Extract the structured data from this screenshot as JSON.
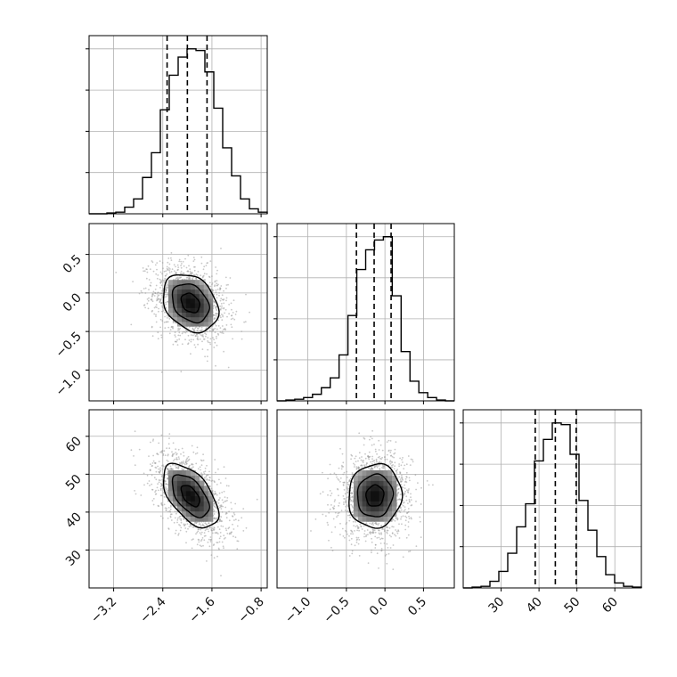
{
  "chart_data": {
    "type": "corner",
    "grid": true,
    "colors": {
      "line": "#000000",
      "grid": "#b0b0b0",
      "scatter": "#9a9a9a"
    },
    "parameters": [
      {
        "id": "p1",
        "range": [
          -3.6,
          -0.7
        ],
        "ticks": [
          -3.2,
          -2.4,
          -1.6,
          -0.8
        ],
        "tick_labels": [
          "−3.2",
          "−2.4",
          "−1.6",
          "−0.8"
        ],
        "quantiles": [
          -2.33,
          -2.0,
          -1.68
        ],
        "hist_ymax": 1.08,
        "hist": {
          "edges": [
            -3.6,
            -3.455,
            -3.31,
            -3.165,
            -3.02,
            -2.875,
            -2.73,
            -2.585,
            -2.44,
            -2.295,
            -2.15,
            -2.005,
            -1.86,
            -1.715,
            -1.57,
            -1.425,
            -1.28,
            -1.135,
            -0.99,
            -0.845,
            -0.7
          ],
          "counts": [
            0,
            0,
            0.005,
            0.01,
            0.04,
            0.09,
            0.22,
            0.37,
            0.63,
            0.84,
            0.95,
            1.0,
            0.99,
            0.86,
            0.64,
            0.4,
            0.23,
            0.09,
            0.03,
            0.01
          ]
        }
      },
      {
        "id": "p2",
        "range": [
          -1.4,
          0.9
        ],
        "ticks": [
          -1.0,
          -0.5,
          0.0,
          0.5
        ],
        "tick_labels": [
          "−1.0",
          "−0.5",
          "0.0",
          "0.5"
        ],
        "quantiles": [
          -0.37,
          -0.14,
          0.08
        ],
        "hist_ymax": 1.08,
        "hist": {
          "edges": [
            -1.4,
            -1.285,
            -1.17,
            -1.055,
            -0.94,
            -0.825,
            -0.71,
            -0.595,
            -0.48,
            -0.365,
            -0.25,
            -0.135,
            -0.02,
            0.095,
            0.21,
            0.325,
            0.44,
            0.555,
            0.67,
            0.785,
            0.9
          ],
          "counts": [
            0,
            0.005,
            0.01,
            0.02,
            0.04,
            0.08,
            0.14,
            0.28,
            0.52,
            0.8,
            0.92,
            0.98,
            1.0,
            0.64,
            0.3,
            0.12,
            0.05,
            0.02,
            0.005,
            0
          ]
        }
      },
      {
        "id": "p3",
        "range": [
          20,
          67
        ],
        "ticks": [
          30,
          40,
          50,
          60
        ],
        "tick_labels": [
          "30",
          "40",
          "50",
          "60"
        ],
        "quantiles": [
          39.0,
          44.3,
          49.8
        ],
        "hist_ymax": 1.08,
        "hist": {
          "edges": [
            20,
            22.35,
            24.7,
            27.05,
            29.4,
            31.75,
            34.1,
            36.45,
            38.8,
            41.15,
            43.5,
            45.85,
            48.2,
            50.55,
            52.9,
            55.25,
            57.6,
            59.95,
            62.3,
            64.65,
            67
          ],
          "counts": [
            0,
            0.005,
            0.01,
            0.04,
            0.1,
            0.21,
            0.37,
            0.51,
            0.77,
            0.9,
            1.0,
            0.99,
            0.81,
            0.53,
            0.35,
            0.19,
            0.08,
            0.03,
            0.01,
            0.005
          ]
        }
      }
    ],
    "pairs": [
      {
        "x": "p1",
        "y": "p2",
        "center": [
          -1.95,
          -0.13
        ],
        "sd": [
          0.3,
          0.25
        ],
        "rho": -0.28,
        "n_points": 1500
      },
      {
        "x": "p1",
        "y": "p3",
        "center": [
          -1.95,
          44.3
        ],
        "sd": [
          0.3,
          5.6
        ],
        "rho": -0.55,
        "n_points": 1500
      },
      {
        "x": "p2",
        "y": "p3",
        "center": [
          -0.13,
          44.3
        ],
        "sd": [
          0.23,
          5.6
        ],
        "rho": 0.05,
        "n_points": 1500
      }
    ],
    "contour_levels": [
      0.5,
      1.0,
      1.5
    ]
  }
}
